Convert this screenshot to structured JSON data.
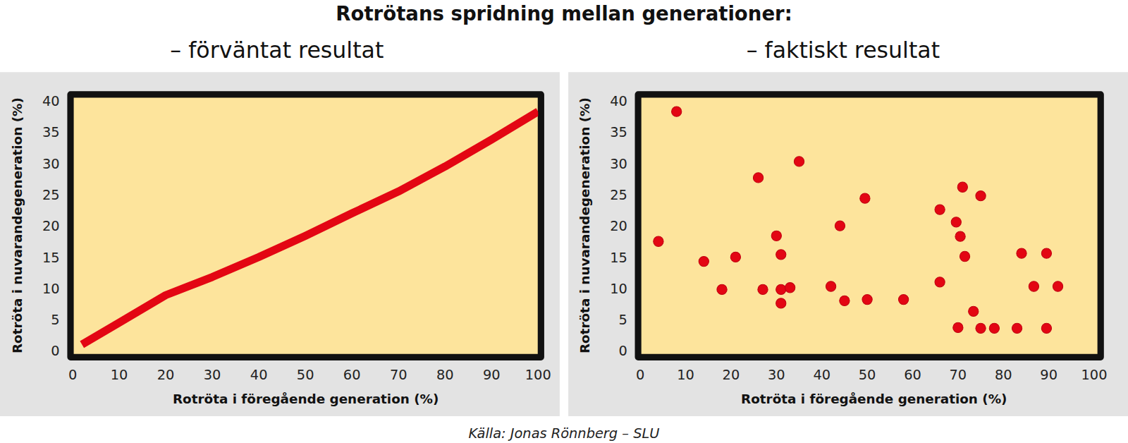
{
  "title": "Rotrötans spridning mellan generationer:",
  "source": "Källa: Jonas Rönnberg – SLU",
  "chart_data": [
    {
      "type": "line",
      "title": "– förväntat resultat",
      "x_label": "Rotröta i föregående generation (%)",
      "y_label": "Rotröta i nuvarandegeneration (%)",
      "x": [
        2,
        10,
        20,
        30,
        40,
        50,
        60,
        70,
        80,
        90,
        100
      ],
      "values": [
        1,
        4.5,
        8.9,
        11.8,
        15,
        18.4,
        22,
        25.5,
        29.5,
        33.8,
        38.3
      ],
      "color": "#e30613",
      "line_style": "solid",
      "xlim": [
        0,
        100
      ],
      "xticks": [
        0,
        10,
        20,
        30,
        40,
        50,
        60,
        70,
        80,
        90,
        100
      ],
      "ylim": [
        0,
        40
      ],
      "yticks": [
        0,
        5,
        10,
        15,
        20,
        25,
        30,
        35,
        40
      ],
      "grid": false
    },
    {
      "type": "scatter",
      "title": "– faktiskt resultat",
      "x_label": "Rotröta i föregående generation (%)",
      "y_label": "Rotröta i nuvarandegeneration (%)",
      "x": [
        4,
        8,
        14,
        18,
        21,
        26,
        27,
        30,
        31,
        31,
        31,
        33,
        35,
        42,
        44,
        45,
        49.5,
        50,
        58,
        66,
        66,
        69.6,
        70.5,
        70,
        71,
        71.5,
        75,
        73.4,
        75,
        78,
        84,
        83,
        86.7,
        89.5,
        89.5,
        92
      ],
      "values": [
        17.5,
        38.3,
        14.3,
        9.8,
        15,
        27.7,
        9.8,
        18.4,
        15.4,
        9.8,
        7.6,
        10.1,
        30.3,
        10.3,
        20,
        8,
        24.4,
        8.2,
        8.2,
        22.6,
        11,
        20.6,
        18.3,
        3.7,
        26.2,
        15.1,
        24.8,
        6.3,
        3.6,
        3.6,
        15.6,
        3.6,
        10.3,
        15.6,
        3.6,
        10.3
      ],
      "color": "#e30613",
      "marker": "circle",
      "xlim": [
        0,
        100
      ],
      "xticks": [
        0,
        10,
        20,
        30,
        40,
        50,
        60,
        70,
        80,
        90,
        100
      ],
      "ylim": [
        0,
        40
      ],
      "yticks": [
        0,
        5,
        10,
        15,
        20,
        25,
        30,
        35,
        40
      ],
      "grid": false
    }
  ]
}
